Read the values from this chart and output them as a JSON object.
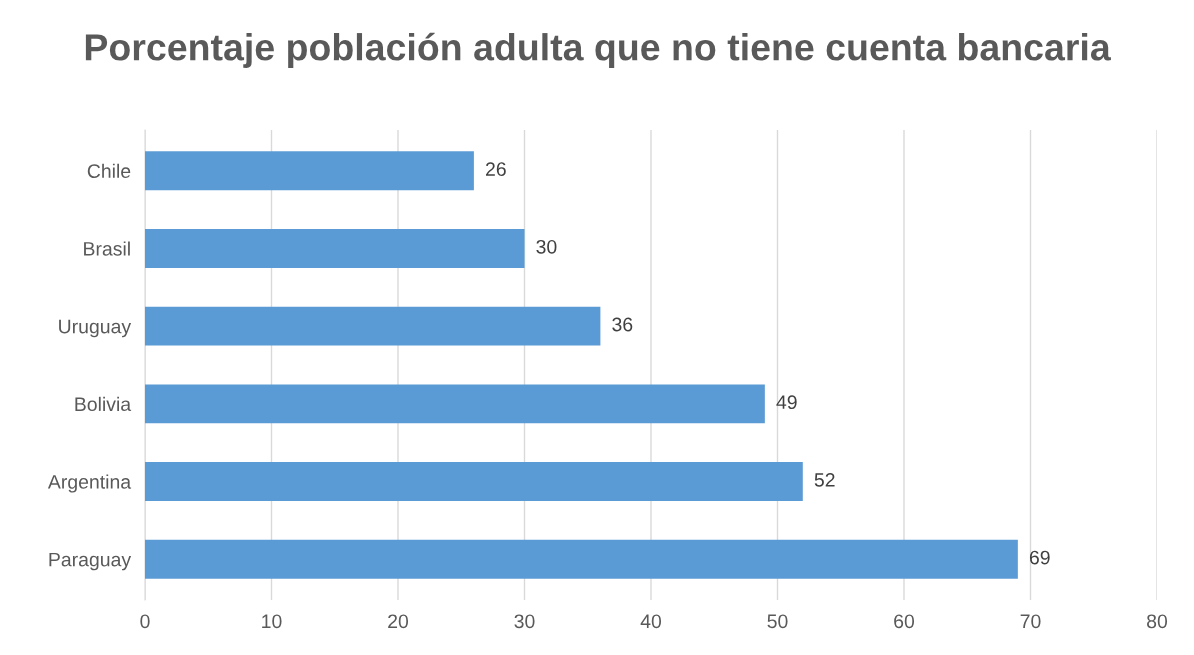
{
  "chart_data": {
    "type": "bar",
    "orientation": "horizontal",
    "title": "Porcentaje población adulta que no tiene cuenta bancaria",
    "categories": [
      "Chile",
      "Brasil",
      "Uruguay",
      "Bolivia",
      "Argentina",
      "Paraguay"
    ],
    "values": [
      26,
      30,
      36,
      49,
      52,
      69
    ],
    "color": "#5b9bd5",
    "xlim": [
      0,
      80
    ],
    "xticks": [
      0,
      10,
      20,
      30,
      40,
      50,
      60,
      70,
      80
    ],
    "grid": "x",
    "data_labels": true
  }
}
